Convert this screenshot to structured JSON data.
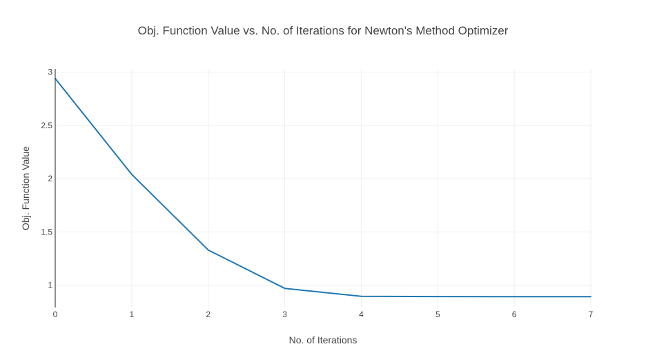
{
  "chart_data": {
    "type": "line",
    "title": "Obj. Function Value vs. No. of Iterations for Newton's Method Optimizer",
    "xlabel": "No. of Iterations",
    "ylabel": "Obj. Function Value",
    "xlim": [
      0,
      7
    ],
    "ylim": [
      0.79,
      3.03
    ],
    "x_ticks": [
      0,
      1,
      2,
      3,
      4,
      5,
      6,
      7
    ],
    "y_ticks": [
      1,
      1.5,
      2,
      2.5,
      3
    ],
    "y_tick_labels": [
      "1",
      "1.5",
      "2",
      "2.5",
      "3"
    ],
    "grid": true,
    "series": [
      {
        "color": "#1f77b4",
        "x": [
          0,
          1,
          2,
          3,
          4,
          5,
          6,
          7
        ],
        "y": [
          2.94,
          2.04,
          1.33,
          0.97,
          0.895,
          0.893,
          0.892,
          0.892
        ]
      }
    ]
  }
}
